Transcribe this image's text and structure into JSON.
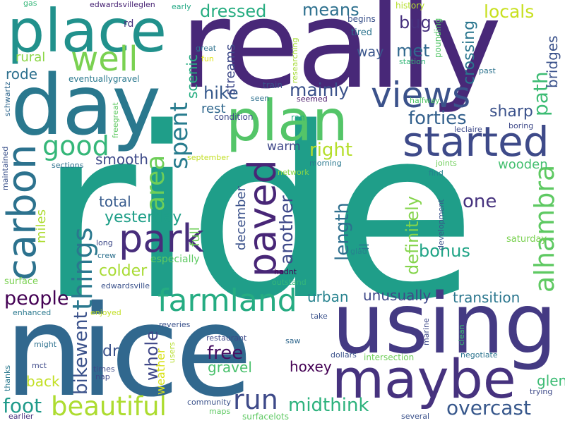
{
  "words": [
    {
      "text": "ride",
      "color": "#1f9e89"
    },
    {
      "text": "really",
      "color": "#482878"
    },
    {
      "text": "nice",
      "color": "#31688e"
    },
    {
      "text": "using",
      "color": "#443a83"
    },
    {
      "text": "day",
      "color": "#2a788e"
    },
    {
      "text": "place",
      "color": "#21918c"
    },
    {
      "text": "plan",
      "color": "#54c568"
    },
    {
      "text": "maybe",
      "color": "#46327e"
    },
    {
      "text": "views",
      "color": "#3b528b"
    },
    {
      "text": "started",
      "color": "#3e4a89"
    },
    {
      "text": "well",
      "color": "#7ad151"
    },
    {
      "text": "carbon",
      "color": "#2c728e"
    },
    {
      "text": "paved",
      "color": "#482677"
    },
    {
      "text": "park",
      "color": "#472d7b"
    },
    {
      "text": "farmland",
      "color": "#25ac82"
    },
    {
      "text": "beautiful",
      "color": "#addc30"
    },
    {
      "text": "alhambra",
      "color": "#5ec962"
    },
    {
      "text": "things",
      "color": "#2a788e"
    },
    {
      "text": "good",
      "color": "#35b779"
    },
    {
      "text": "area",
      "color": "#6ece58"
    },
    {
      "text": "run",
      "color": "#3e4a89"
    },
    {
      "text": "midthink",
      "color": "#2db27d"
    },
    {
      "text": "overcast",
      "color": "#38588c"
    },
    {
      "text": "foot",
      "color": "#1f9a8a"
    },
    {
      "text": "spent",
      "color": "#287c8e"
    },
    {
      "text": "bikewent",
      "color": "#3b528b"
    },
    {
      "text": "definitely",
      "color": "#84d44b"
    },
    {
      "text": "people",
      "color": "#440154"
    },
    {
      "text": "forties",
      "color": "#34618d"
    },
    {
      "text": "length",
      "color": "#2e6f8e"
    },
    {
      "text": "hike",
      "color": "#375a8c"
    },
    {
      "text": "mainly",
      "color": "#3b528b"
    },
    {
      "text": "right",
      "color": "#b5de2b"
    },
    {
      "text": "another",
      "color": "#3e4989"
    },
    {
      "text": "whole",
      "color": "#3f4788"
    },
    {
      "text": "free",
      "color": "#471063"
    },
    {
      "text": "bonus",
      "color": "#20a486"
    },
    {
      "text": "one",
      "color": "#46327e"
    },
    {
      "text": "sharp",
      "color": "#3b528b"
    },
    {
      "text": "path",
      "color": "#3dbc74"
    },
    {
      "text": "dressed",
      "color": "#27ad81"
    },
    {
      "text": "means",
      "color": "#2d708e"
    },
    {
      "text": "locals",
      "color": "#c8e020"
    },
    {
      "text": "bug",
      "color": "#46307e"
    },
    {
      "text": "met",
      "color": "#31688e"
    },
    {
      "text": "crossing",
      "color": "#2a768e"
    },
    {
      "text": "bridges",
      "color": "#3b528b"
    },
    {
      "text": "yesterday",
      "color": "#1f9f88"
    },
    {
      "text": "colder",
      "color": "#a8db34"
    },
    {
      "text": "total",
      "color": "#375b8d"
    },
    {
      "text": "smooth",
      "color": "#3e4a89"
    },
    {
      "text": "warm",
      "color": "#3f4889"
    },
    {
      "text": "wooden",
      "color": "#44bf70"
    },
    {
      "text": "transition",
      "color": "#2a768e"
    },
    {
      "text": "unusually",
      "color": "#3f4889"
    },
    {
      "text": "urban",
      "color": "#26828e"
    },
    {
      "text": "hoxey",
      "color": "#440154"
    },
    {
      "text": "gravel",
      "color": "#4ac16d"
    },
    {
      "text": "back",
      "color": "#c2df23"
    },
    {
      "text": "dr",
      "color": "#3b528b"
    },
    {
      "text": "glen",
      "color": "#3dbc74"
    },
    {
      "text": "rural",
      "color": "#8bd646"
    },
    {
      "text": "rode",
      "color": "#2d708e"
    },
    {
      "text": "way",
      "color": "#39558c"
    },
    {
      "text": "rest",
      "color": "#31688e"
    },
    {
      "text": "scenic",
      "color": "#26ad81"
    },
    {
      "text": "streams",
      "color": "#3e4a89"
    },
    {
      "text": "december",
      "color": "#3b528b"
    },
    {
      "text": "full",
      "color": "#6ece58"
    },
    {
      "text": "il",
      "color": "#2a788e"
    },
    {
      "text": "miles",
      "color": "#addc30"
    },
    {
      "text": "especially",
      "color": "#5ec962"
    },
    {
      "text": "weather",
      "color": "#d8e219"
    },
    {
      "text": "surface",
      "color": "#7ad151"
    },
    {
      "text": "saturday",
      "color": "#7ad151"
    },
    {
      "text": "gas",
      "color": "#35b779"
    },
    {
      "text": "edwardsvilleglen",
      "color": "#482475"
    },
    {
      "text": "rd",
      "color": "#46327e"
    },
    {
      "text": "early",
      "color": "#22a884"
    },
    {
      "text": "history",
      "color": "#b5de2b"
    },
    {
      "text": "begins",
      "color": "#3b528b"
    },
    {
      "text": "tired",
      "color": "#2c738e"
    },
    {
      "text": "pounding",
      "color": "#54c568"
    },
    {
      "text": "station",
      "color": "#35b779"
    },
    {
      "text": "great",
      "color": "#2d718e"
    },
    {
      "text": "fun",
      "color": "#dde318"
    },
    {
      "text": "researching",
      "color": "#a5db36"
    },
    {
      "text": "eventuallygravel",
      "color": "#2a788e"
    },
    {
      "text": "train",
      "color": "#3b528b"
    },
    {
      "text": "seen",
      "color": "#2d708e"
    },
    {
      "text": "seemed",
      "color": "#481769"
    },
    {
      "text": "ran",
      "color": "#22a884"
    },
    {
      "text": "condition",
      "color": "#3e4989"
    },
    {
      "text": "halfway",
      "color": "#54c568"
    },
    {
      "text": "past",
      "color": "#2c738e"
    },
    {
      "text": "schwartz",
      "color": "#31688e"
    },
    {
      "text": "freegreat",
      "color": "#5ec962"
    },
    {
      "text": "leclaire",
      "color": "#3e4a89"
    },
    {
      "text": "boring",
      "color": "#3e4989"
    },
    {
      "text": "maintained",
      "color": "#3b528b"
    },
    {
      "text": "sections",
      "color": "#2d708e"
    },
    {
      "text": "september",
      "color": "#c2df23"
    },
    {
      "text": "morning",
      "color": "#2a788e"
    },
    {
      "text": "network",
      "color": "#8bd646"
    },
    {
      "text": "joints",
      "color": "#6ece58"
    },
    {
      "text": "find",
      "color": "#26828e"
    },
    {
      "text": "development",
      "color": "#3b528b"
    },
    {
      "text": "long",
      "color": "#3e4a89"
    },
    {
      "text": "crew",
      "color": "#2d708e"
    },
    {
      "text": "glad",
      "color": "#26828e"
    },
    {
      "text": "hadnt",
      "color": "#440154"
    },
    {
      "text": "outstand",
      "color": "#35b779"
    },
    {
      "text": "edwardsville",
      "color": "#3b528b"
    },
    {
      "text": "enhanced",
      "color": "#2a788e"
    },
    {
      "text": "enjoyed",
      "color": "#c2df23"
    },
    {
      "text": "reveries",
      "color": "#3b528b"
    },
    {
      "text": "users",
      "color": "#b5de2b"
    },
    {
      "text": "take",
      "color": "#3b528b"
    },
    {
      "text": "marine",
      "color": "#3e4a89"
    },
    {
      "text": "clean",
      "color": "#3dbc74"
    },
    {
      "text": "negotiate",
      "color": "#2c738e"
    },
    {
      "text": "intersection",
      "color": "#6ece58"
    },
    {
      "text": "dollars",
      "color": "#3b528b"
    },
    {
      "text": "saw",
      "color": "#31688e"
    },
    {
      "text": "restaurant",
      "color": "#3e4a89"
    },
    {
      "text": "might",
      "color": "#2d708e"
    },
    {
      "text": "mct",
      "color": "#3e4a89"
    },
    {
      "text": "thanks",
      "color": "#2a788e"
    },
    {
      "text": "times",
      "color": "#3e4a89"
    },
    {
      "text": "nap",
      "color": "#3e4a89"
    },
    {
      "text": "earlier",
      "color": "#46327e"
    },
    {
      "text": "maps",
      "color": "#5ec962"
    },
    {
      "text": "community",
      "color": "#3b528b"
    },
    {
      "text": "surfacelots",
      "color": "#5ec962"
    },
    {
      "text": "several",
      "color": "#3b528b"
    },
    {
      "text": "trying",
      "color": "#3e4a89"
    }
  ]
}
